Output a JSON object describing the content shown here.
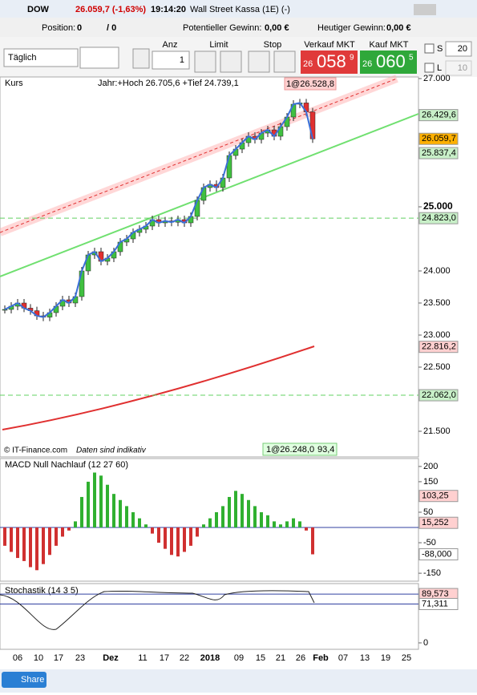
{
  "header": {
    "symbol": "DOW",
    "quote": "26.059,7 (-1,63%)",
    "time": "19:14:20",
    "instrument": "Wall Street Kassa (1E) (-)"
  },
  "account": {
    "position_label": "Position:",
    "position": "0",
    "orders": "/ 0",
    "potential_label": "Potentieller Gewinn:",
    "potential": "0,00 €",
    "today_label": "Heutiger Gewinn:",
    "today": "0,00 €"
  },
  "toolbar": {
    "period": "Täglich",
    "qty_label": "Anz",
    "qty": "1",
    "limit": "Limit",
    "stop": "Stop",
    "sell_label": "Verkauf MKT",
    "sell_big": "26",
    "sell_mid": "058",
    "sell_small": "9",
    "buy_label": "Kauf MKT",
    "buy_big": "26",
    "buy_mid": "060",
    "buy_small": "5",
    "s_label": "S",
    "s_value": "20",
    "l_label": "L",
    "l_value": "10"
  },
  "price_chart": {
    "type": "candlestick",
    "title": "Kurs",
    "info": "Jahr:+Hoch 26.705,6 +Tief 24.739,1",
    "marker_high": "1@26.528,8",
    "marker_low": "1@26.248,0",
    "marker_extra": "93,4",
    "copyright": "© IT-Finance.com",
    "disclaimer": "Daten sind indikativ",
    "closes": [
      23400,
      23450,
      23500,
      23420,
      23380,
      23300,
      23280,
      23350,
      23450,
      23550,
      23500,
      23600,
      24000,
      24250,
      24300,
      24150,
      24200,
      24300,
      24450,
      24500,
      24600,
      24650,
      24700,
      24800,
      24750,
      24780,
      24760,
      24800,
      24750,
      24850,
      25100,
      25300,
      25350,
      25300,
      25450,
      25800,
      25900,
      26000,
      26100,
      26050,
      26150,
      26200,
      26100,
      26250,
      26400,
      26600,
      26620,
      26480,
      26060
    ],
    "ylim": [
      21100,
      27025
    ],
    "yticks": [
      {
        "value": 27000,
        "label": "27.000"
      },
      {
        "value": 25000,
        "label": "25.000"
      },
      {
        "value": 24000,
        "label": "24.000"
      },
      {
        "value": 23500,
        "label": "23.500"
      },
      {
        "value": 23000,
        "label": "23.000"
      },
      {
        "value": 22500,
        "label": "22.500"
      },
      {
        "value": 21500,
        "label": "21.500"
      }
    ],
    "tags": [
      {
        "value": 26429.6,
        "label": "26.429,6",
        "color": "#c8f0c8"
      },
      {
        "value": 26059.7,
        "label": "26.059,7",
        "color": "#ffb000"
      },
      {
        "value": 25837.4,
        "label": "25.837,4",
        "color": "#c8f0c8"
      },
      {
        "value": 24823,
        "label": "24.823,0",
        "color": "#c8f0c8"
      },
      {
        "value": 22816.2,
        "label": "22.816,2",
        "color": "#ffd0d0"
      },
      {
        "value": 22062,
        "label": "22.062,0",
        "color": "#c8f0c8"
      }
    ]
  },
  "macd": {
    "type": "bar",
    "title": "MACD Null Nachlauf (12 27 60)",
    "values": [
      -60,
      -80,
      -100,
      -110,
      -130,
      -140,
      -120,
      -90,
      -60,
      -30,
      -10,
      20,
      100,
      150,
      180,
      170,
      140,
      110,
      90,
      70,
      50,
      30,
      10,
      -20,
      -50,
      -70,
      -90,
      -95,
      -80,
      -60,
      -30,
      10,
      30,
      50,
      70,
      100,
      120,
      110,
      90,
      70,
      50,
      40,
      20,
      10,
      20,
      30,
      20,
      -10,
      -88
    ],
    "ylim": [
      -176,
      226
    ],
    "yticks": [
      200,
      150,
      50,
      -50,
      -150
    ],
    "tags": [
      {
        "value": 103.25,
        "label": "103,25",
        "color": "#ffd0d0"
      },
      {
        "value": 15.252,
        "label": "15,252",
        "color": "#ffd0d0"
      },
      {
        "value": -88,
        "label": "-88,000",
        "color": "#ffffff"
      }
    ]
  },
  "stochastic": {
    "title": "Stochastik (14 3 5)",
    "ylim": [
      -11.8,
      108.8
    ],
    "yticks": [
      0
    ],
    "tags": [
      {
        "value": 89.573,
        "label": "89,573",
        "color": "#ffd0d0"
      },
      {
        "value": 71.311,
        "label": "71,311",
        "color": "#ffffff"
      }
    ]
  },
  "x_axis": [
    "06",
    "10",
    "17",
    "23",
    "Dez",
    "11",
    "17",
    "22",
    "2018",
    "09",
    "15",
    "21",
    "26",
    "Feb",
    "07",
    "13",
    "19",
    "25"
  ],
  "footer": {
    "share": "Share"
  }
}
